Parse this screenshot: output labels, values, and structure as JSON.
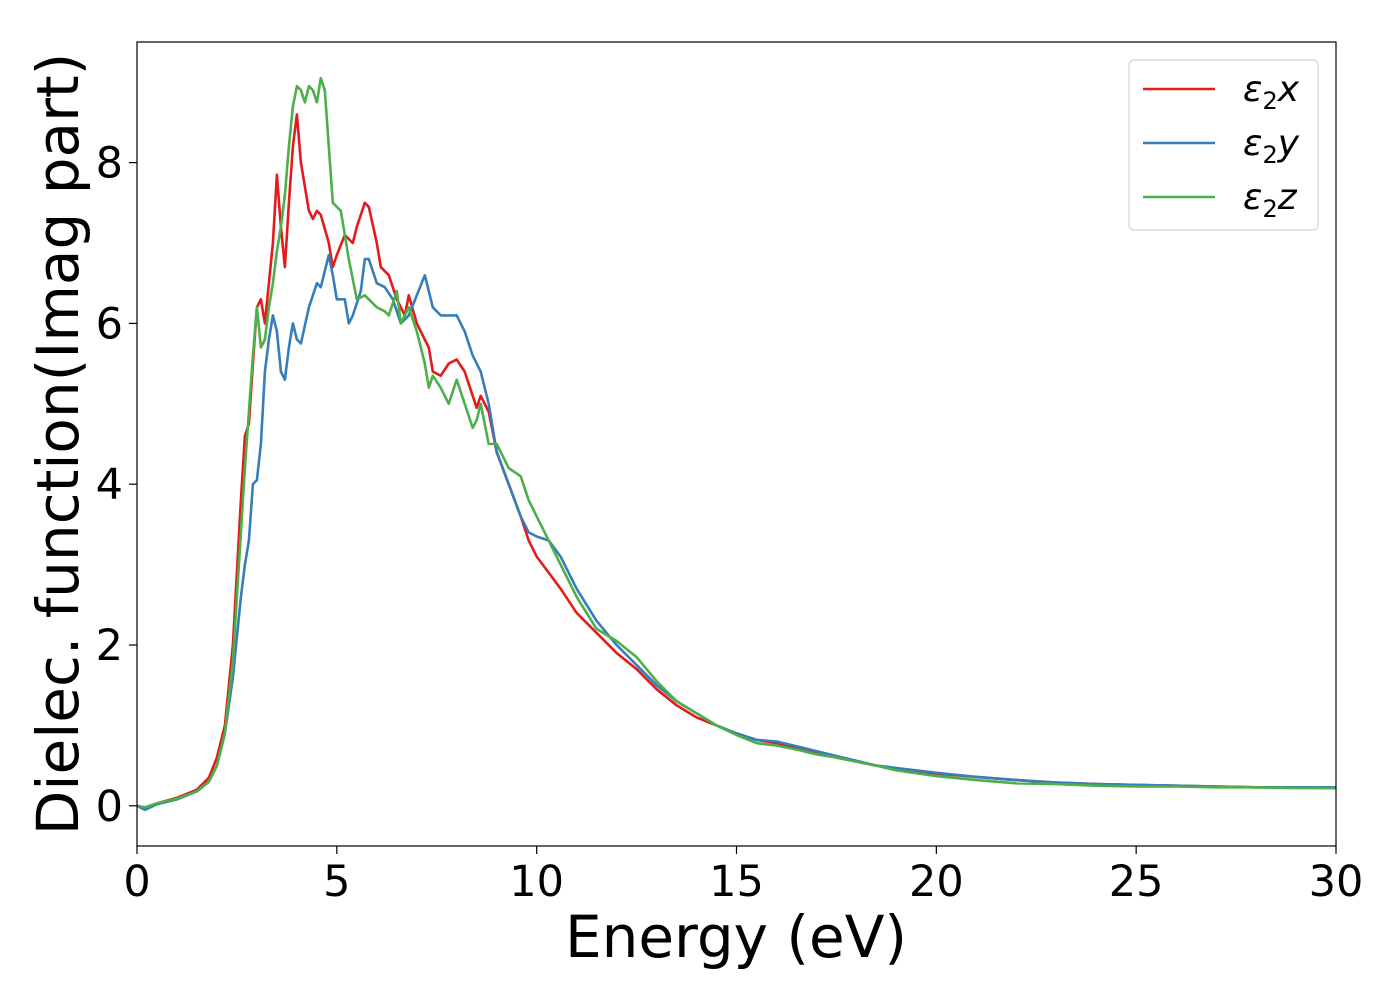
{
  "chart_data": {
    "type": "line",
    "title": "",
    "xlabel": "Energy (eV)",
    "ylabel": "Dielec. function(Imag part)",
    "xlim": [
      0,
      30
    ],
    "ylim": [
      -0.5,
      9.5
    ],
    "xticks": [
      0,
      5,
      10,
      15,
      20,
      25,
      30
    ],
    "yticks": [
      0,
      2,
      4,
      6,
      8
    ],
    "grid": false,
    "legend_position": "top-right",
    "series": [
      {
        "name": "ε2x",
        "legend_base": "ε",
        "legend_sub": "2",
        "legend_tail": "x",
        "color": "#e41a1c",
        "points": [
          [
            0,
            0
          ],
          [
            0.2,
            -0.03
          ],
          [
            0.5,
            0.03
          ],
          [
            1.0,
            0.1
          ],
          [
            1.5,
            0.2
          ],
          [
            1.8,
            0.35
          ],
          [
            2.0,
            0.6
          ],
          [
            2.2,
            1.0
          ],
          [
            2.4,
            2.0
          ],
          [
            2.6,
            3.8
          ],
          [
            2.7,
            4.6
          ],
          [
            2.8,
            4.75
          ],
          [
            2.9,
            5.5
          ],
          [
            3.0,
            6.2
          ],
          [
            3.1,
            6.3
          ],
          [
            3.2,
            6.0
          ],
          [
            3.3,
            6.5
          ],
          [
            3.4,
            7.0
          ],
          [
            3.5,
            7.85
          ],
          [
            3.6,
            7.2
          ],
          [
            3.7,
            6.7
          ],
          [
            3.8,
            7.5
          ],
          [
            3.9,
            8.2
          ],
          [
            4.0,
            8.6
          ],
          [
            4.1,
            8.0
          ],
          [
            4.2,
            7.7
          ],
          [
            4.3,
            7.4
          ],
          [
            4.4,
            7.3
          ],
          [
            4.5,
            7.4
          ],
          [
            4.6,
            7.35
          ],
          [
            4.8,
            7.0
          ],
          [
            4.9,
            6.7
          ],
          [
            5.0,
            6.85
          ],
          [
            5.2,
            7.1
          ],
          [
            5.4,
            7.0
          ],
          [
            5.5,
            7.2
          ],
          [
            5.7,
            7.5
          ],
          [
            5.8,
            7.45
          ],
          [
            6.0,
            7.0
          ],
          [
            6.1,
            6.7
          ],
          [
            6.3,
            6.6
          ],
          [
            6.5,
            6.3
          ],
          [
            6.7,
            6.1
          ],
          [
            6.8,
            6.35
          ],
          [
            7.0,
            6.0
          ],
          [
            7.2,
            5.8
          ],
          [
            7.3,
            5.7
          ],
          [
            7.4,
            5.4
          ],
          [
            7.6,
            5.35
          ],
          [
            7.8,
            5.5
          ],
          [
            8.0,
            5.55
          ],
          [
            8.2,
            5.4
          ],
          [
            8.4,
            5.1
          ],
          [
            8.5,
            4.95
          ],
          [
            8.6,
            5.1
          ],
          [
            8.8,
            4.9
          ],
          [
            9.0,
            4.4
          ],
          [
            9.3,
            4.0
          ],
          [
            9.6,
            3.6
          ],
          [
            9.8,
            3.3
          ],
          [
            10.0,
            3.1
          ],
          [
            10.3,
            2.9
          ],
          [
            10.6,
            2.7
          ],
          [
            11.0,
            2.4
          ],
          [
            11.5,
            2.15
          ],
          [
            12.0,
            1.9
          ],
          [
            12.5,
            1.7
          ],
          [
            13.0,
            1.45
          ],
          [
            13.5,
            1.25
          ],
          [
            14.0,
            1.1
          ],
          [
            14.5,
            1.0
          ],
          [
            15.0,
            0.9
          ],
          [
            15.5,
            0.82
          ],
          [
            16.0,
            0.78
          ],
          [
            16.5,
            0.72
          ],
          [
            17.0,
            0.66
          ],
          [
            17.5,
            0.6
          ],
          [
            18.0,
            0.55
          ],
          [
            18.5,
            0.5
          ],
          [
            19.0,
            0.46
          ],
          [
            20.0,
            0.4
          ],
          [
            21.0,
            0.36
          ],
          [
            22.0,
            0.32
          ],
          [
            23.0,
            0.29
          ],
          [
            24.0,
            0.27
          ],
          [
            25.0,
            0.26
          ],
          [
            26.0,
            0.25
          ],
          [
            27.0,
            0.24
          ],
          [
            28.0,
            0.23
          ],
          [
            29.0,
            0.23
          ],
          [
            30.0,
            0.22
          ]
        ]
      },
      {
        "name": "ε2y",
        "legend_base": "ε",
        "legend_sub": "2",
        "legend_tail": "y",
        "color": "#377eb8",
        "points": [
          [
            0,
            0
          ],
          [
            0.2,
            -0.05
          ],
          [
            0.5,
            0.02
          ],
          [
            1.0,
            0.08
          ],
          [
            1.5,
            0.18
          ],
          [
            1.8,
            0.3
          ],
          [
            2.0,
            0.5
          ],
          [
            2.2,
            0.9
          ],
          [
            2.4,
            1.6
          ],
          [
            2.6,
            2.6
          ],
          [
            2.7,
            3.0
          ],
          [
            2.8,
            3.3
          ],
          [
            2.9,
            4.0
          ],
          [
            3.0,
            4.05
          ],
          [
            3.1,
            4.5
          ],
          [
            3.2,
            5.4
          ],
          [
            3.3,
            5.8
          ],
          [
            3.4,
            6.1
          ],
          [
            3.5,
            5.9
          ],
          [
            3.6,
            5.4
          ],
          [
            3.7,
            5.3
          ],
          [
            3.8,
            5.7
          ],
          [
            3.9,
            6.0
          ],
          [
            4.0,
            5.8
          ],
          [
            4.1,
            5.75
          ],
          [
            4.3,
            6.2
          ],
          [
            4.5,
            6.5
          ],
          [
            4.6,
            6.45
          ],
          [
            4.7,
            6.65
          ],
          [
            4.8,
            6.85
          ],
          [
            4.9,
            6.6
          ],
          [
            5.0,
            6.3
          ],
          [
            5.2,
            6.3
          ],
          [
            5.3,
            6.0
          ],
          [
            5.4,
            6.1
          ],
          [
            5.6,
            6.4
          ],
          [
            5.7,
            6.8
          ],
          [
            5.8,
            6.8
          ],
          [
            6.0,
            6.5
          ],
          [
            6.2,
            6.45
          ],
          [
            6.4,
            6.3
          ],
          [
            6.6,
            6.0
          ],
          [
            6.8,
            6.1
          ],
          [
            7.0,
            6.35
          ],
          [
            7.2,
            6.6
          ],
          [
            7.3,
            6.4
          ],
          [
            7.4,
            6.2
          ],
          [
            7.6,
            6.1
          ],
          [
            7.8,
            6.1
          ],
          [
            8.0,
            6.1
          ],
          [
            8.2,
            5.9
          ],
          [
            8.4,
            5.6
          ],
          [
            8.6,
            5.4
          ],
          [
            8.8,
            5.0
          ],
          [
            9.0,
            4.4
          ],
          [
            9.3,
            4.0
          ],
          [
            9.6,
            3.6
          ],
          [
            9.8,
            3.4
          ],
          [
            10.0,
            3.35
          ],
          [
            10.3,
            3.3
          ],
          [
            10.6,
            3.1
          ],
          [
            11.0,
            2.7
          ],
          [
            11.5,
            2.3
          ],
          [
            12.0,
            2.0
          ],
          [
            12.5,
            1.75
          ],
          [
            13.0,
            1.5
          ],
          [
            13.5,
            1.3
          ],
          [
            14.0,
            1.15
          ],
          [
            14.5,
            1.0
          ],
          [
            15.0,
            0.9
          ],
          [
            15.5,
            0.82
          ],
          [
            16.0,
            0.8
          ],
          [
            16.5,
            0.74
          ],
          [
            17.0,
            0.68
          ],
          [
            17.5,
            0.62
          ],
          [
            18.0,
            0.56
          ],
          [
            18.5,
            0.5
          ],
          [
            19.0,
            0.47
          ],
          [
            20.0,
            0.41
          ],
          [
            21.0,
            0.36
          ],
          [
            22.0,
            0.32
          ],
          [
            23.0,
            0.29
          ],
          [
            24.0,
            0.27
          ],
          [
            25.0,
            0.26
          ],
          [
            26.0,
            0.25
          ],
          [
            27.0,
            0.24
          ],
          [
            28.0,
            0.23
          ],
          [
            29.0,
            0.23
          ],
          [
            30.0,
            0.23
          ]
        ]
      },
      {
        "name": "ε2z",
        "legend_base": "ε",
        "legend_sub": "2",
        "legend_tail": "z",
        "color": "#4daf4a",
        "points": [
          [
            0,
            0
          ],
          [
            0.2,
            -0.02
          ],
          [
            0.5,
            0.03
          ],
          [
            1.0,
            0.09
          ],
          [
            1.5,
            0.18
          ],
          [
            1.8,
            0.3
          ],
          [
            2.0,
            0.5
          ],
          [
            2.2,
            0.9
          ],
          [
            2.4,
            1.8
          ],
          [
            2.6,
            3.4
          ],
          [
            2.7,
            4.2
          ],
          [
            2.8,
            4.9
          ],
          [
            2.9,
            5.6
          ],
          [
            3.0,
            6.2
          ],
          [
            3.1,
            5.7
          ],
          [
            3.2,
            5.8
          ],
          [
            3.3,
            6.2
          ],
          [
            3.4,
            6.5
          ],
          [
            3.5,
            6.9
          ],
          [
            3.6,
            7.2
          ],
          [
            3.7,
            7.6
          ],
          [
            3.8,
            8.2
          ],
          [
            3.9,
            8.7
          ],
          [
            4.0,
            8.95
          ],
          [
            4.1,
            8.9
          ],
          [
            4.2,
            8.75
          ],
          [
            4.3,
            8.95
          ],
          [
            4.4,
            8.9
          ],
          [
            4.5,
            8.75
          ],
          [
            4.6,
            9.05
          ],
          [
            4.7,
            8.9
          ],
          [
            4.8,
            8.2
          ],
          [
            4.9,
            7.5
          ],
          [
            5.0,
            7.45
          ],
          [
            5.1,
            7.4
          ],
          [
            5.3,
            6.8
          ],
          [
            5.5,
            6.3
          ],
          [
            5.7,
            6.35
          ],
          [
            5.8,
            6.3
          ],
          [
            6.0,
            6.2
          ],
          [
            6.2,
            6.15
          ],
          [
            6.3,
            6.1
          ],
          [
            6.5,
            6.4
          ],
          [
            6.6,
            6.0
          ],
          [
            6.8,
            6.2
          ],
          [
            7.0,
            5.9
          ],
          [
            7.2,
            5.5
          ],
          [
            7.3,
            5.2
          ],
          [
            7.4,
            5.35
          ],
          [
            7.6,
            5.2
          ],
          [
            7.8,
            5.0
          ],
          [
            8.0,
            5.3
          ],
          [
            8.2,
            5.0
          ],
          [
            8.4,
            4.7
          ],
          [
            8.5,
            4.8
          ],
          [
            8.6,
            5.0
          ],
          [
            8.8,
            4.5
          ],
          [
            9.0,
            4.5
          ],
          [
            9.3,
            4.2
          ],
          [
            9.6,
            4.1
          ],
          [
            9.8,
            3.8
          ],
          [
            10.0,
            3.6
          ],
          [
            10.3,
            3.3
          ],
          [
            10.6,
            3.0
          ],
          [
            11.0,
            2.6
          ],
          [
            11.5,
            2.2
          ],
          [
            12.0,
            2.05
          ],
          [
            12.5,
            1.85
          ],
          [
            13.0,
            1.55
          ],
          [
            13.5,
            1.3
          ],
          [
            14.0,
            1.15
          ],
          [
            14.5,
            1.0
          ],
          [
            15.0,
            0.88
          ],
          [
            15.5,
            0.78
          ],
          [
            16.0,
            0.75
          ],
          [
            16.5,
            0.7
          ],
          [
            17.0,
            0.64
          ],
          [
            17.5,
            0.6
          ],
          [
            18.0,
            0.55
          ],
          [
            18.5,
            0.5
          ],
          [
            19.0,
            0.44
          ],
          [
            20.0,
            0.37
          ],
          [
            21.0,
            0.32
          ],
          [
            22.0,
            0.28
          ],
          [
            23.0,
            0.27
          ],
          [
            24.0,
            0.25
          ],
          [
            25.0,
            0.24
          ],
          [
            26.0,
            0.24
          ],
          [
            27.0,
            0.23
          ],
          [
            28.0,
            0.23
          ],
          [
            29.0,
            0.22
          ],
          [
            30.0,
            0.22
          ]
        ]
      }
    ]
  }
}
